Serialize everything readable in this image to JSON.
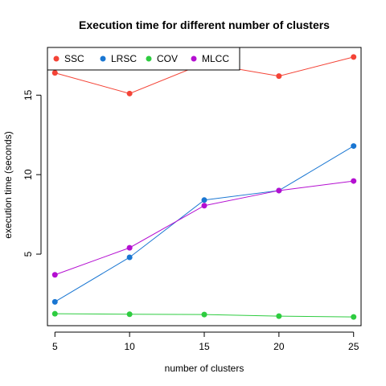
{
  "chart_data": {
    "type": "line",
    "title": "Execution time for different number of clusters",
    "xlabel": "number of clusters",
    "ylabel": "execution time (seconds)",
    "x": [
      5,
      10,
      15,
      20,
      25
    ],
    "xticks": [
      5,
      10,
      15,
      20,
      25
    ],
    "yticks": [
      5,
      10,
      15
    ],
    "xlim": [
      4.5,
      25.5
    ],
    "ylim": [
      0.5,
      18
    ],
    "grid": false,
    "legend_position": "top-left",
    "series": [
      {
        "name": "SSC",
        "color": "#f44336",
        "values": [
          16.4,
          15.1,
          17.0,
          16.2,
          17.4
        ]
      },
      {
        "name": "LRSC",
        "color": "#1976d2",
        "values": [
          2.0,
          4.8,
          8.4,
          9.0,
          11.8
        ]
      },
      {
        "name": "COV",
        "color": "#2ecc40",
        "values": [
          1.25,
          1.22,
          1.2,
          1.1,
          1.05
        ]
      },
      {
        "name": "MLCC",
        "color": "#b40fd1",
        "values": [
          3.7,
          5.4,
          8.05,
          9.0,
          9.6
        ]
      }
    ]
  }
}
